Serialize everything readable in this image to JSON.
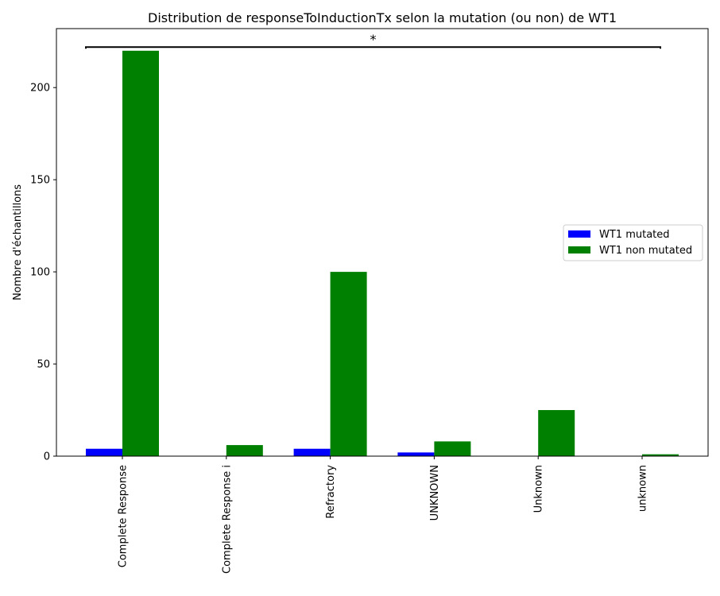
{
  "chart_data": {
    "type": "bar",
    "title": "Distribution de responseToInductionTx selon la mutation (ou non) de WT1",
    "xlabel": "",
    "ylabel": "Nombre d'échantillons",
    "categories": [
      "Complete Response",
      "Complete Response i",
      "Refractory",
      "UNKNOWN",
      "Unknown",
      "unknown"
    ],
    "series": [
      {
        "name": "WT1 mutated",
        "color": "#0000ff",
        "values": [
          4,
          0,
          4,
          2,
          0,
          0
        ]
      },
      {
        "name": "WT1 non mutated",
        "color": "#008000",
        "values": [
          220,
          6,
          100,
          8,
          25,
          1
        ]
      }
    ],
    "ylim": [
      0,
      232
    ],
    "yticks": [
      0,
      50,
      100,
      150,
      200
    ],
    "legend_position": "right",
    "grid": false,
    "annotation": {
      "text": "*",
      "level": 222,
      "from_category": "Complete Response",
      "to_category": "unknown"
    }
  }
}
